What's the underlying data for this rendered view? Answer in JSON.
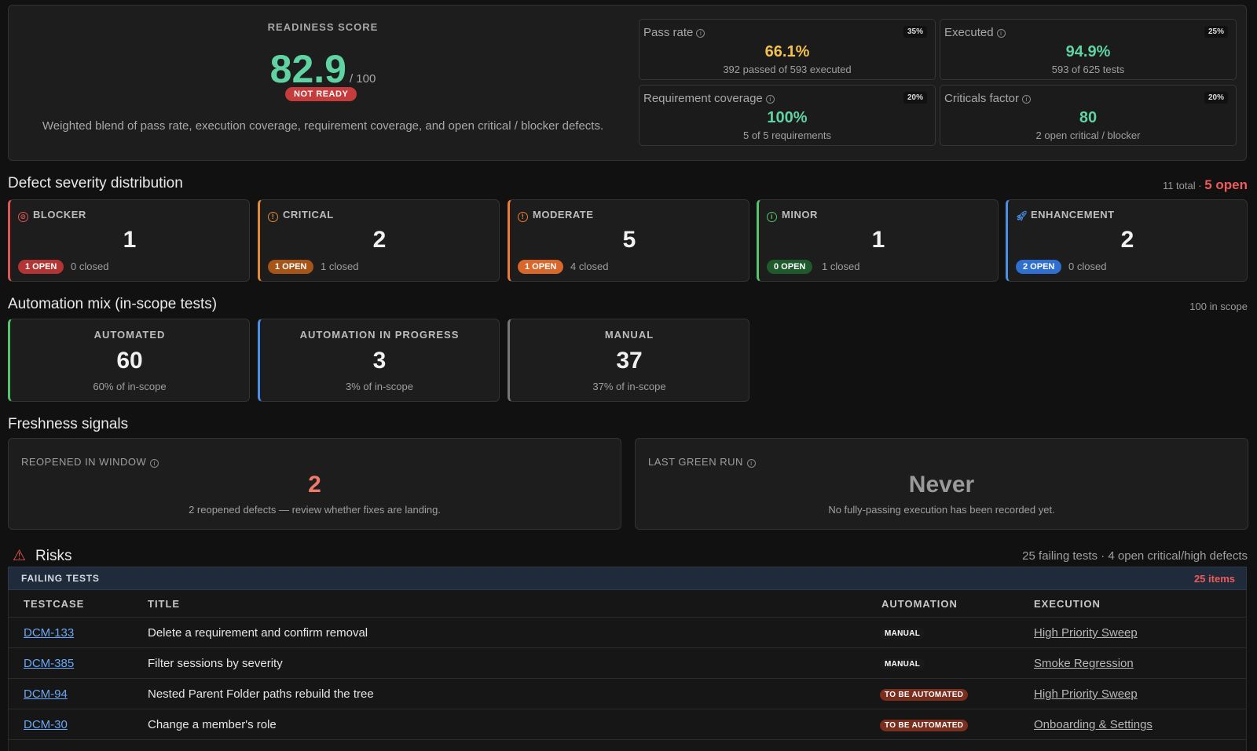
{
  "readiness": {
    "label": "READINESS SCORE",
    "score": "82.9",
    "max": "/ 100",
    "status": "NOT READY",
    "description": "Weighted blend of pass rate, execution coverage, requirement coverage, and open critical / blocker defects.",
    "metrics": [
      {
        "label": "Pass rate",
        "weight": "35%",
        "value": "66.1%",
        "sub": "392 passed of 593 executed",
        "color": "#f2c14e"
      },
      {
        "label": "Executed",
        "weight": "25%",
        "value": "94.9%",
        "sub": "593 of 625 tests",
        "color": "#5fd3a2"
      },
      {
        "label": "Requirement coverage",
        "weight": "20%",
        "value": "100%",
        "sub": "5 of 5 requirements",
        "color": "#5fd3a2"
      },
      {
        "label": "Criticals factor",
        "weight": "20%",
        "value": "80",
        "sub": "2 open critical / blocker",
        "color": "#5fd3a2"
      }
    ]
  },
  "severity": {
    "title": "Defect severity distribution",
    "total": "11 total",
    "open": "5 open",
    "items": [
      {
        "label": "BLOCKER",
        "count": "1",
        "open": "1 OPEN",
        "closed": "0 closed",
        "color": "#e05555",
        "badge": "#b33434",
        "icon": "blocked-icon"
      },
      {
        "label": "CRITICAL",
        "count": "2",
        "open": "1 OPEN",
        "closed": "1 closed",
        "color": "#e08a3c",
        "badge": "#a65418",
        "icon": "alert-circle-icon"
      },
      {
        "label": "MODERATE",
        "count": "5",
        "open": "1 OPEN",
        "closed": "4 closed",
        "color": "#ef7a36",
        "badge": "#d9662a",
        "icon": "alert-circle-icon"
      },
      {
        "label": "MINOR",
        "count": "1",
        "open": "0 OPEN",
        "closed": "1 closed",
        "color": "#55c46a",
        "badge": "#1f5a2d",
        "icon": "info-circle-icon"
      },
      {
        "label": "ENHANCEMENT",
        "count": "2",
        "open": "2 OPEN",
        "closed": "0 closed",
        "color": "#4a8fe8",
        "badge": "#2f6fd0",
        "icon": "rocket-icon"
      }
    ]
  },
  "automation": {
    "title": "Automation mix (in-scope tests)",
    "scope": "100 in scope",
    "items": [
      {
        "label": "AUTOMATED",
        "count": "60",
        "sub": "60% of in-scope",
        "color": "#55c46a"
      },
      {
        "label": "AUTOMATION IN PROGRESS",
        "count": "3",
        "sub": "3% of in-scope",
        "color": "#4a8fe8"
      },
      {
        "label": "MANUAL",
        "count": "37",
        "sub": "37% of in-scope",
        "color": "#777777"
      }
    ]
  },
  "freshness": {
    "title": "Freshness signals",
    "reopened": {
      "label": "REOPENED IN WINDOW",
      "value": "2",
      "sub": "2 reopened defects — review whether fixes are landing.",
      "color": "#ef7a6a"
    },
    "last_green": {
      "label": "LAST GREEN RUN",
      "value": "Never",
      "sub": "No fully-passing execution has been recorded yet.",
      "color": "#9a9a9a"
    }
  },
  "risks": {
    "title": "Risks",
    "summary": "25 failing tests · 4 open critical/high defects",
    "failing_label": "FAILING TESTS",
    "failing_count": "25 items",
    "columns": [
      "TESTCASE",
      "TITLE",
      "AUTOMATION",
      "EXECUTION"
    ],
    "rows": [
      {
        "id": "DCM-133",
        "title": "Delete a requirement and confirm removal",
        "automation": "MANUAL",
        "execution": "High Priority Sweep"
      },
      {
        "id": "DCM-385",
        "title": "Filter sessions by severity",
        "automation": "MANUAL",
        "execution": "Smoke Regression"
      },
      {
        "id": "DCM-94",
        "title": "Nested Parent Folder paths rebuild the tree",
        "automation": "TO BE AUTOMATED",
        "execution": "High Priority Sweep"
      },
      {
        "id": "DCM-30",
        "title": "Change a member's role",
        "automation": "TO BE AUTOMATED",
        "execution": "Onboarding & Settings"
      }
    ]
  }
}
